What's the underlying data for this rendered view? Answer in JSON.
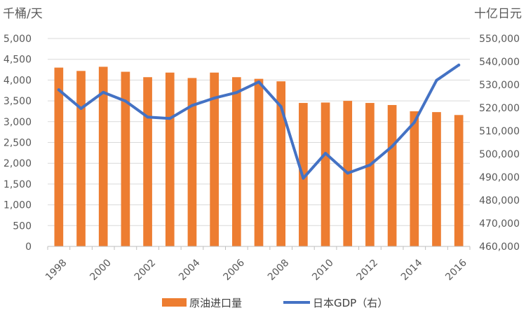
{
  "chart_data": {
    "type": "bar+line",
    "categories": [
      "1998",
      "1999",
      "2000",
      "2001",
      "2002",
      "2003",
      "2004",
      "2005",
      "2006",
      "2007",
      "2008",
      "2009",
      "2010",
      "2011",
      "2012",
      "2013",
      "2014",
      "2015",
      "2016"
    ],
    "x_tick_labels": [
      "1998",
      "2000",
      "2002",
      "2004",
      "2006",
      "2008",
      "2010",
      "2012",
      "2014",
      "2016"
    ],
    "left_axis": {
      "unit": "千桶/天",
      "ylim": [
        0,
        5000
      ],
      "ticks": [
        0,
        500,
        1000,
        1500,
        2000,
        2500,
        3000,
        3500,
        4000,
        4500,
        5000
      ],
      "tick_labels": [
        "0",
        "500",
        "1,000",
        "1,500",
        "2,000",
        "2,500",
        "3,000",
        "3,500",
        "4,000",
        "4,500",
        "5,000"
      ]
    },
    "right_axis": {
      "unit": "十亿日元",
      "ylim": [
        460000,
        550000
      ],
      "ticks": [
        460000,
        470000,
        480000,
        490000,
        500000,
        510000,
        520000,
        530000,
        540000,
        550000
      ],
      "tick_labels": [
        "460,000",
        "470,000",
        "480,000",
        "490,000",
        "500,000",
        "510,000",
        "520,000",
        "530,000",
        "540,000",
        "550,000"
      ]
    },
    "series": [
      {
        "name": "原油进口量",
        "type": "bar",
        "axis": "left",
        "color": "#ED7D31",
        "values": [
          4300,
          4220,
          4320,
          4200,
          4070,
          4180,
          4050,
          4180,
          4070,
          4030,
          3970,
          3450,
          3460,
          3500,
          3450,
          3400,
          3250,
          3230,
          3160
        ]
      },
      {
        "name": "日本GDP（右）",
        "type": "line",
        "axis": "right",
        "color": "#4472C4",
        "values": [
          527800,
          519700,
          526700,
          522900,
          516000,
          515400,
          521000,
          524200,
          526600,
          531200,
          520500,
          489500,
          500300,
          491700,
          495200,
          503300,
          513700,
          531900,
          538500
        ]
      }
    ],
    "grid": "horizontal",
    "legend_position": "bottom"
  }
}
